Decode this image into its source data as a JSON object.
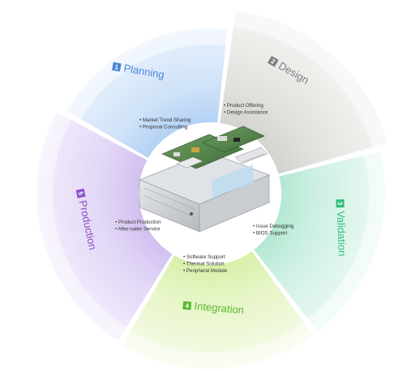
{
  "diagram": {
    "stages": [
      {
        "id": "planning",
        "number": "1",
        "name": "Planning",
        "color": "#4a86d8",
        "bullets": [
          "Market Trend Sharing",
          "Proposal Consulting"
        ]
      },
      {
        "id": "design",
        "number": "2",
        "name": "Design",
        "color": "#7d7d7d",
        "bullets": [
          "Product Offering",
          "Design Assistance"
        ]
      },
      {
        "id": "validation",
        "number": "3",
        "name": "Validation",
        "color": "#2fbf7d",
        "bullets": [
          "Issue Debugging",
          "BIOS Support"
        ]
      },
      {
        "id": "integration",
        "number": "4",
        "name": "Integration",
        "color": "#57b82e",
        "bullets": [
          "Software Support",
          "Thermal Solution",
          "Peripheral Module"
        ]
      },
      {
        "id": "production",
        "number": "5",
        "name": "Production",
        "color": "#8a4fc6",
        "bullets": [
          "Product Production",
          "After-sales Service"
        ]
      }
    ]
  }
}
